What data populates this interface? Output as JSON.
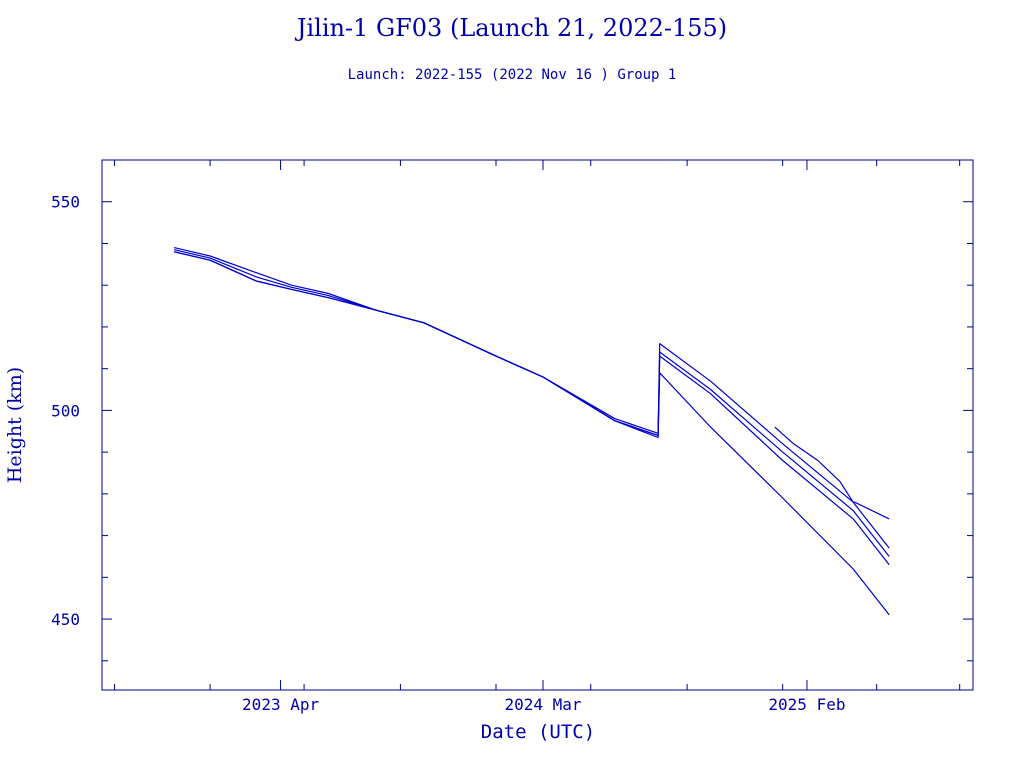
{
  "chart_data": {
    "type": "line",
    "title": "Jilin-1 GF03 (Launch 21, 2022-155)",
    "subtitle": "Launch: 2022-155  (2022 Nov 16 )  Group 1",
    "xlabel": "Date (UTC)",
    "ylabel": "Height (km)",
    "xlim": [
      "2022-08-16",
      "2025-09-01"
    ],
    "ylim": [
      433,
      560
    ],
    "x_ticks": [
      "2023 Apr",
      "2024 Mar",
      "2025 Feb"
    ],
    "y_ticks": [
      450,
      500,
      550
    ],
    "grid": false,
    "line_color": "#0000cc",
    "series": [
      {
        "x": [
          "2022-11-16",
          "2023-01-01",
          "2023-03-01",
          "2023-04-15",
          "2023-06-01",
          "2023-08-01",
          "2023-10-01",
          "2024-01-01",
          "2024-03-01",
          "2024-06-01",
          "2024-07-26",
          "2024-07-28",
          "2024-10-01",
          "2025-01-01",
          "2025-04-01",
          "2025-05-17"
        ],
        "values": [
          539.0,
          537.0,
          533.0,
          530.0,
          528.0,
          524.0,
          521.0,
          513.0,
          508.0,
          498.0,
          494.5,
          516.0,
          507.0,
          492.0,
          478.0,
          467.0
        ]
      },
      {
        "x": [
          "2022-11-16",
          "2023-01-01",
          "2023-03-01",
          "2023-04-15",
          "2023-06-01",
          "2023-08-01",
          "2023-10-01",
          "2024-01-01",
          "2024-03-01",
          "2024-06-01",
          "2024-07-26",
          "2024-07-28",
          "2024-10-01",
          "2025-01-01",
          "2025-04-01",
          "2025-05-17"
        ],
        "values": [
          538.5,
          536.5,
          532.0,
          529.5,
          527.5,
          524.0,
          521.0,
          513.0,
          508.0,
          497.5,
          494.0,
          514.0,
          505.0,
          490.0,
          476.0,
          465.0
        ]
      },
      {
        "x": [
          "2022-11-16",
          "2023-01-01",
          "2023-03-01",
          "2023-04-15",
          "2023-06-01",
          "2023-08-01",
          "2023-10-01",
          "2024-01-01",
          "2024-03-01",
          "2024-06-01",
          "2024-07-26",
          "2024-07-28",
          "2024-10-01",
          "2025-01-01",
          "2025-04-01",
          "2025-05-17"
        ],
        "values": [
          538.0,
          536.0,
          531.0,
          529.0,
          527.0,
          524.0,
          521.0,
          513.0,
          508.0,
          497.5,
          494.0,
          513.0,
          504.0,
          488.0,
          474.0,
          463.0
        ]
      },
      {
        "x": [
          "2022-11-16",
          "2023-01-01",
          "2023-03-01",
          "2023-04-15",
          "2023-06-01",
          "2023-08-01",
          "2023-10-01",
          "2024-01-01",
          "2024-03-01",
          "2024-06-01",
          "2024-07-26",
          "2024-07-28",
          "2024-10-01",
          "2025-01-01",
          "2025-04-01",
          "2025-05-17"
        ],
        "values": [
          538.0,
          536.0,
          531.0,
          529.0,
          527.0,
          524.0,
          521.0,
          513.0,
          508.0,
          497.5,
          493.5,
          509.0,
          496.0,
          479.0,
          462.0,
          451.0
        ]
      },
      {
        "x": [
          "2024-12-22",
          "2025-01-15",
          "2025-02-15",
          "2025-03-15",
          "2025-04-01",
          "2025-04-03",
          "2025-05-17"
        ],
        "values": [
          496.0,
          492.0,
          488.0,
          483.0,
          478.0,
          478.0,
          474.0
        ]
      }
    ]
  }
}
